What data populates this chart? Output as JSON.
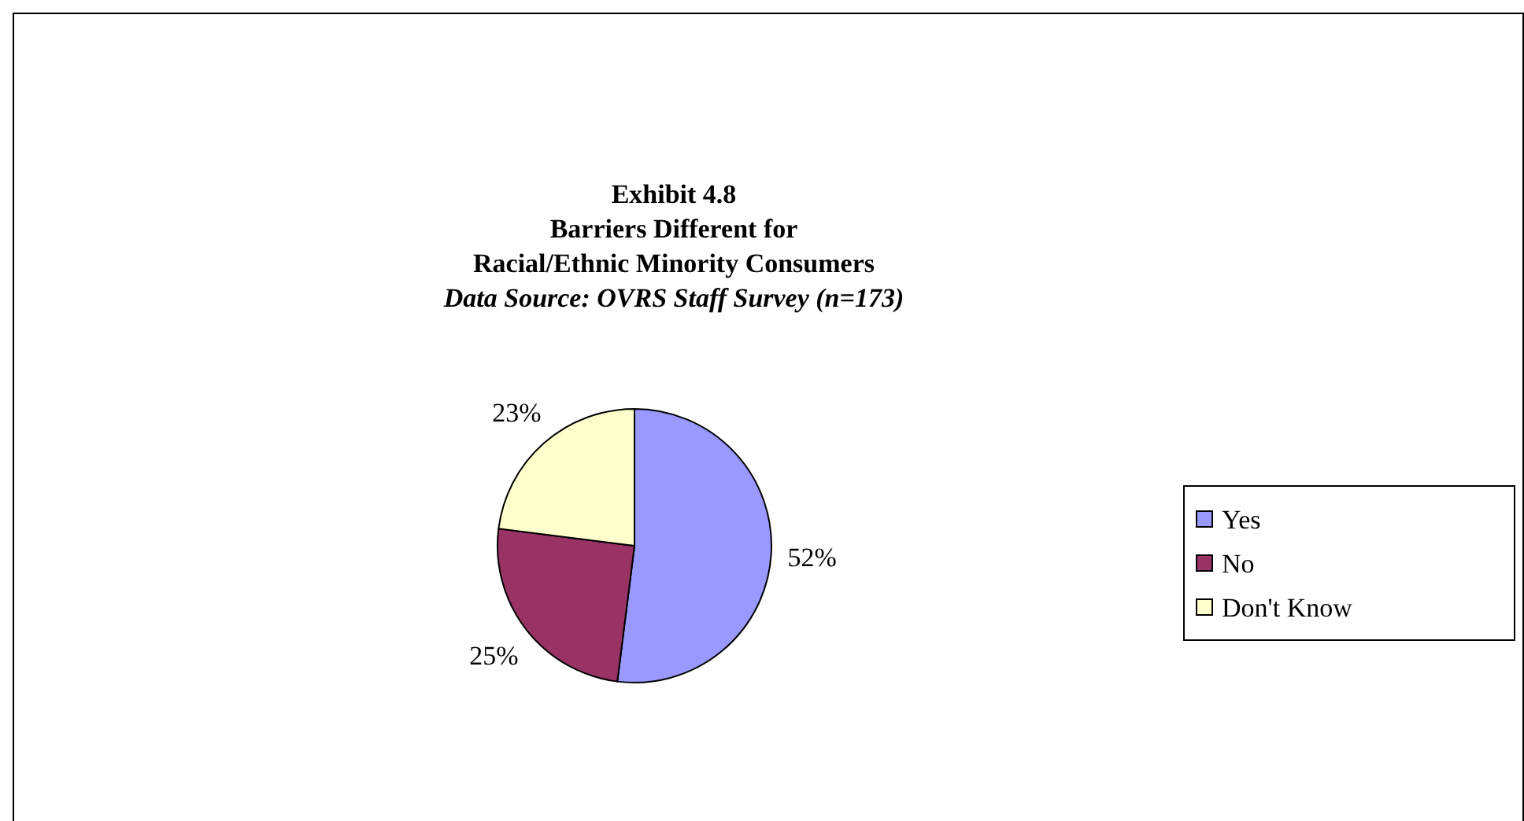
{
  "chart_data": {
    "type": "pie",
    "title": "Exhibit 4.8\nBarriers Different for\nRacial/Ethnic Minority Consumers",
    "subtitle": "Data Source: OVRS Staff Survey (n=173)",
    "categories": [
      "Yes",
      "No",
      "Don't Know"
    ],
    "values": [
      52,
      25,
      23
    ],
    "colors": [
      "#9999ff",
      "#993366",
      "#ffffcc"
    ],
    "value_labels": [
      "52%",
      "25%",
      "23%"
    ],
    "legend": "right"
  }
}
